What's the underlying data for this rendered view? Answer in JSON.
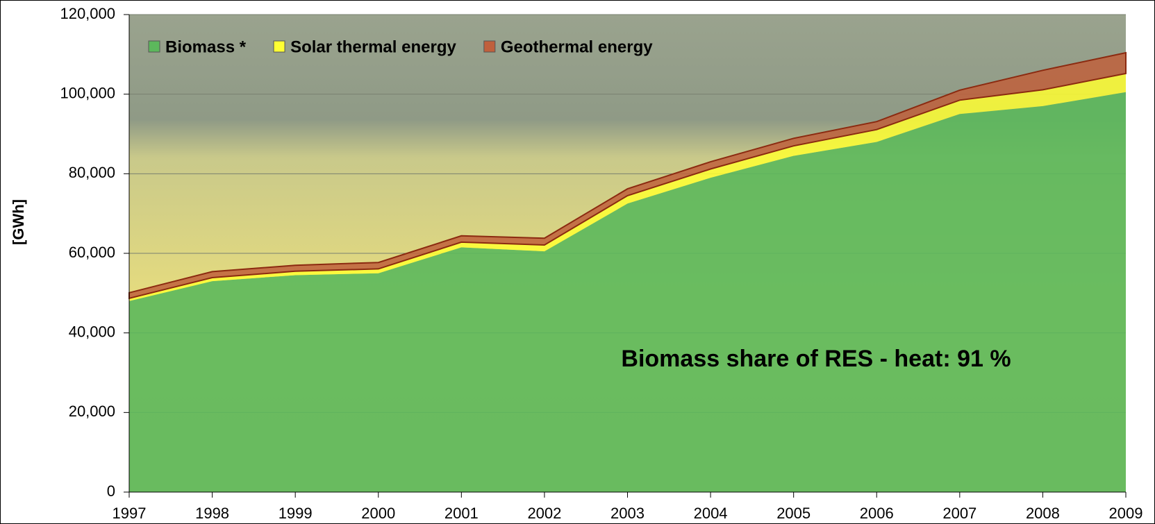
{
  "chart_data": {
    "type": "stacked_area",
    "y_label": "[GWh]",
    "annotation": "Biomass share of RES - heat: 91 %",
    "x": [
      1997,
      1998,
      1999,
      2000,
      2001,
      2002,
      2003,
      2004,
      2005,
      2006,
      2007,
      2008,
      2009
    ],
    "xlim": [
      1997,
      2009
    ],
    "xticks": [
      1997,
      1998,
      1999,
      2000,
      2001,
      2002,
      2003,
      2004,
      2005,
      2006,
      2007,
      2008,
      2009
    ],
    "ylim": [
      0,
      120000
    ],
    "yticks": [
      0,
      {
        "value": 20000,
        "label": "20,000"
      },
      {
        "value": 40000,
        "label": "40,000"
      },
      {
        "value": 60000,
        "label": "60,000"
      },
      {
        "value": 80000,
        "label": "80,000"
      },
      {
        "value": 100000,
        "label": "100,000"
      },
      {
        "value": 120000,
        "label": "120,000"
      }
    ],
    "grid": true,
    "legend": "top-left",
    "series": [
      {
        "name": "Biomass *",
        "color": "#5cb85c",
        "values": [
          48000,
          53000,
          54500,
          55000,
          61500,
          60500,
          72500,
          79000,
          84500,
          88000,
          95000,
          97000,
          100500
        ]
      },
      {
        "name": "Solar thermal energy",
        "color": "#ffff33",
        "values": [
          700,
          900,
          1000,
          1100,
          1300,
          1600,
          2000,
          2200,
          2500,
          3100,
          3500,
          4100,
          4700
        ]
      },
      {
        "name": "Geothermal energy",
        "color": "#c0603c",
        "values": [
          1400,
          1500,
          1500,
          1600,
          1600,
          1700,
          1700,
          1800,
          1900,
          2000,
          2500,
          4900,
          5200
        ]
      }
    ]
  }
}
